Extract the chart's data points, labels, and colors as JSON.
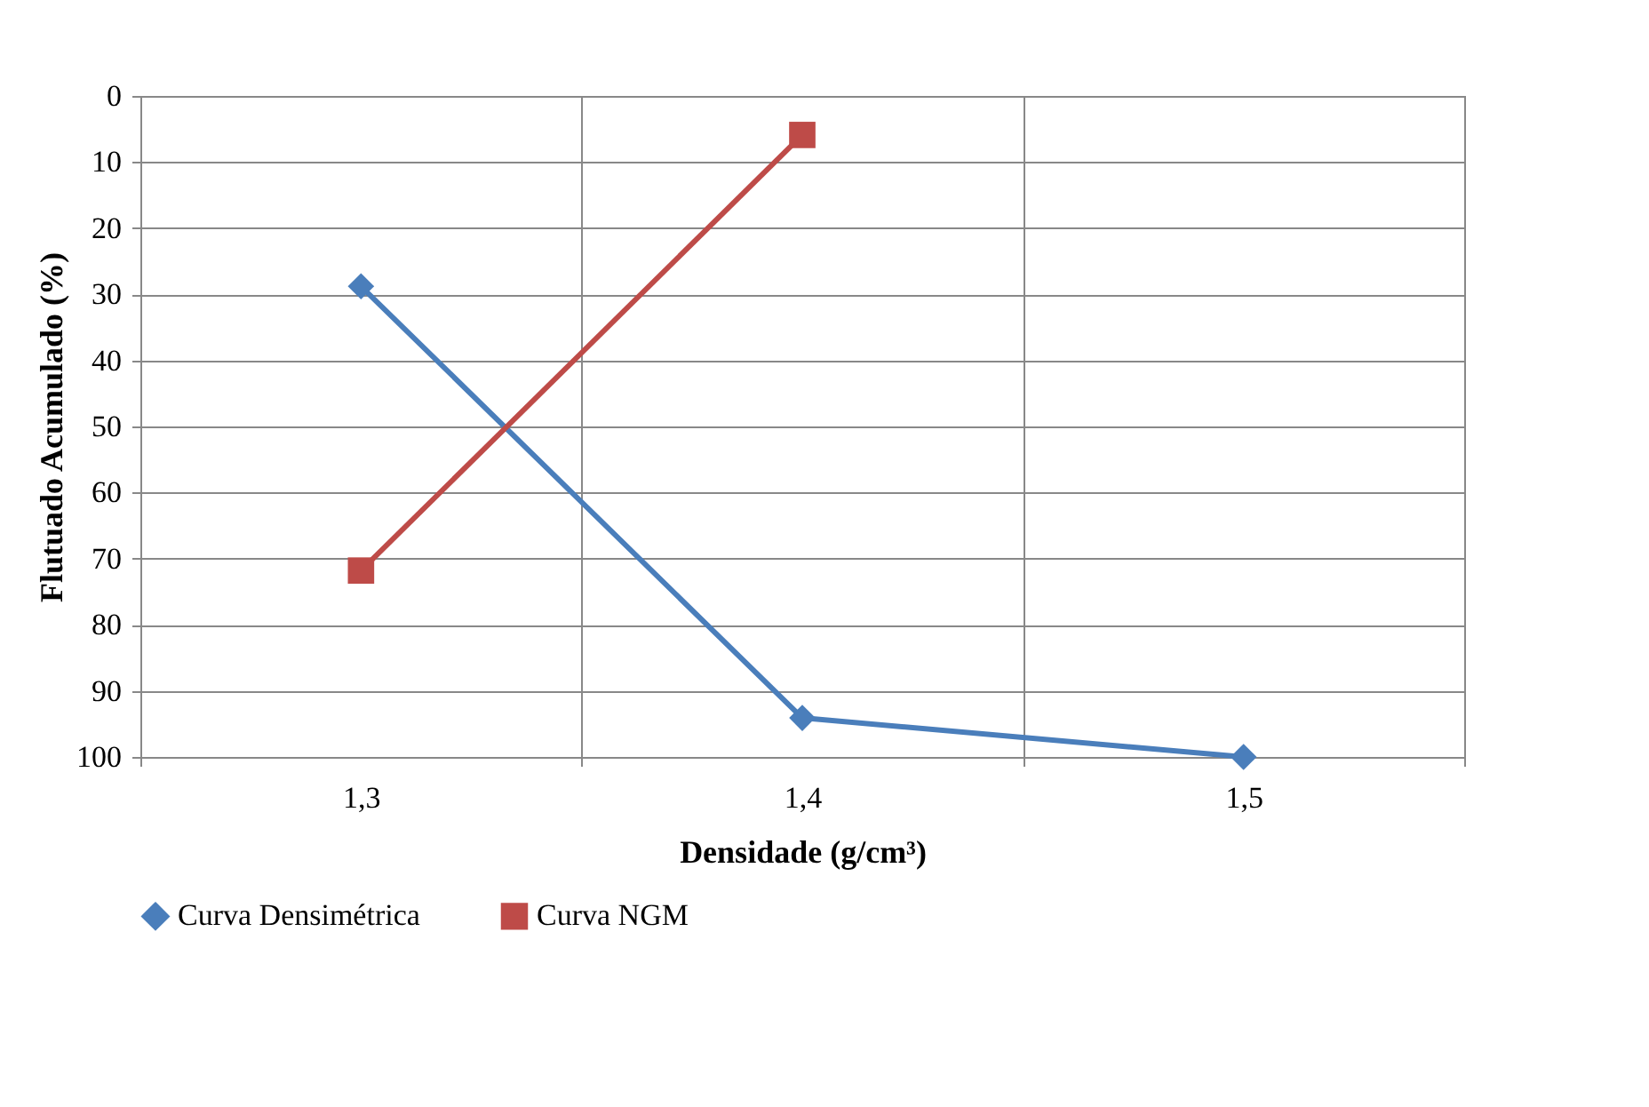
{
  "chart_data": {
    "type": "line",
    "xlabel": "Densidade (g/cm³)",
    "ylabel": "Flutuado Acumulado (%)",
    "categories": [
      "1,3",
      "1,4",
      "1,5"
    ],
    "series": [
      {
        "name": "Curva Densimétrica",
        "color": "#4a7ebb",
        "marker": "diamond",
        "values": [
          28.8,
          94.1,
          100
        ]
      },
      {
        "name": "Curva NGM",
        "color": "#be4b48",
        "marker": "square",
        "values": [
          71.8,
          5.9,
          null
        ]
      }
    ],
    "ylim": [
      100,
      0
    ],
    "yticks": [
      0,
      10,
      20,
      30,
      40,
      50,
      60,
      70,
      80,
      90,
      100
    ],
    "grid": true,
    "legend": "bottom",
    "line_style": "solid"
  }
}
